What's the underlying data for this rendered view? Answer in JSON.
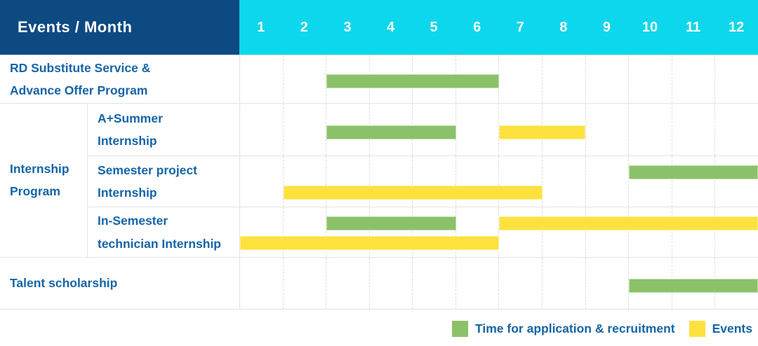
{
  "header": {
    "corner_label": "Events / Month",
    "months": [
      "1",
      "2",
      "3",
      "4",
      "5",
      "6",
      "7",
      "8",
      "9",
      "10",
      "11",
      "12"
    ]
  },
  "colors": {
    "corner_bg": "#0d4a82",
    "month_header_bg": "#0cd7ec",
    "recruitment": "#8bc269",
    "events": "#fde23e",
    "label_text": "#1565a8",
    "header_text": "#ffffff",
    "grid_line": "#e3e3e3"
  },
  "legend": {
    "items": [
      {
        "label": "Time for application & recruitment",
        "kind": "recruitment"
      },
      {
        "label": "Events",
        "kind": "events"
      }
    ]
  },
  "chart_data": {
    "type": "bar",
    "subtype": "gantt-timeline",
    "title": "Events / Month",
    "xlabel": "Month",
    "x_ticks": [
      1,
      2,
      3,
      4,
      5,
      6,
      7,
      8,
      9,
      10,
      11,
      12
    ],
    "x_range": [
      1,
      12
    ],
    "grid": "vertical-dashed",
    "legend_position": "bottom-right",
    "legend_entries": [
      "Time for application & recruitment",
      "Events"
    ],
    "group_label_lines": [
      "Internship",
      "Program"
    ],
    "rows": [
      {
        "group": "",
        "label": "RD Substitute Service & Advance Offer Program",
        "label_lines": [
          "RD Substitute Service &",
          "Advance Offer Program"
        ],
        "bars": [
          {
            "kind": "recruitment",
            "start_month": 3,
            "end_month": 6,
            "lane": "single"
          }
        ]
      },
      {
        "group": "Internship Program",
        "label": "A+Summer Internship",
        "label_lines": [
          "A+Summer",
          "Internship"
        ],
        "bars": [
          {
            "kind": "recruitment",
            "start_month": 3,
            "end_month": 5,
            "lane": "single"
          },
          {
            "kind": "events",
            "start_month": 7,
            "end_month": 8,
            "lane": "single"
          }
        ]
      },
      {
        "group": "Internship Program",
        "label": "Semester project Internship",
        "label_lines": [
          "Semester project",
          "Internship"
        ],
        "bars": [
          {
            "kind": "recruitment",
            "start_month": 10,
            "end_month": 12,
            "lane": "upper"
          },
          {
            "kind": "events",
            "start_month": 2,
            "end_month": 7,
            "lane": "lower"
          }
        ]
      },
      {
        "group": "Internship Program",
        "label": "In-Semester technician Internship",
        "label_lines": [
          "In-Semester",
          "technician Internship"
        ],
        "bars": [
          {
            "kind": "recruitment",
            "start_month": 3,
            "end_month": 5,
            "lane": "upper"
          },
          {
            "kind": "events",
            "start_month": 7,
            "end_month": 12,
            "lane": "upper"
          },
          {
            "kind": "events",
            "start_month": 1,
            "end_month": 6,
            "lane": "lower"
          }
        ]
      },
      {
        "group": "",
        "label": "Talent scholarship",
        "label_lines": [
          "Talent scholarship"
        ],
        "bars": [
          {
            "kind": "recruitment",
            "start_month": 10,
            "end_month": 12,
            "lane": "single"
          }
        ]
      }
    ]
  }
}
